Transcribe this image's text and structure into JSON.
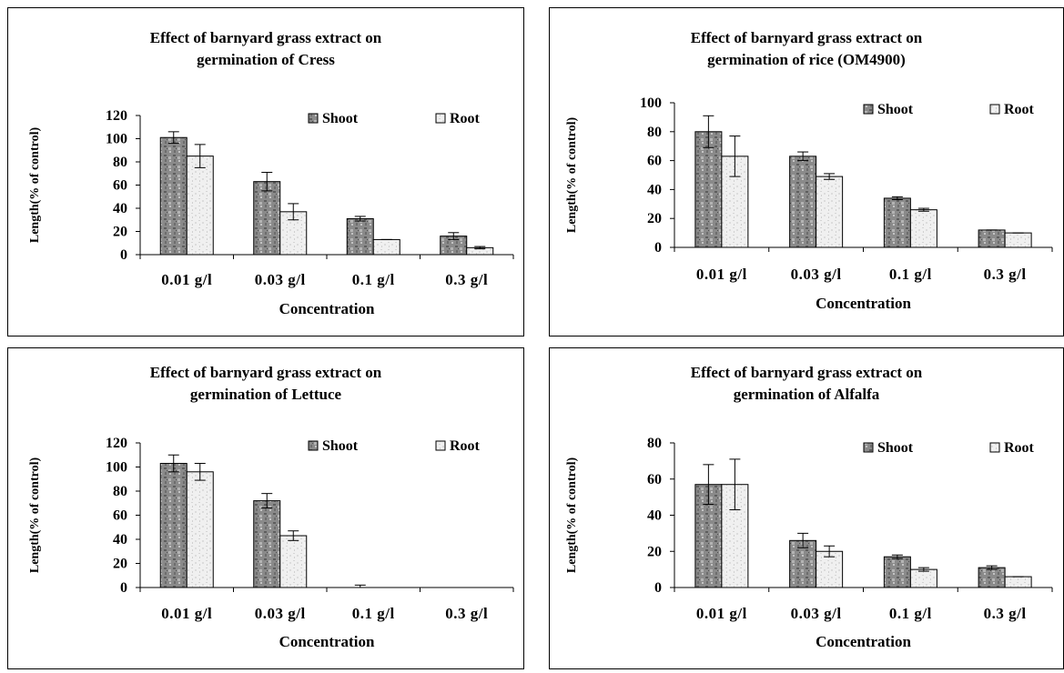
{
  "colors": {
    "shoot_fill": "#8a8a8a",
    "root_fill": "#ececec",
    "axis": "#000000"
  },
  "chart_data": [
    {
      "type": "bar",
      "title": [
        "Effect of barnyard grass extract on",
        "germination of Cress"
      ],
      "categories": [
        "0.01 g/l",
        "0.03 g/l",
        "0.1 g/l",
        "0.3 g/l"
      ],
      "series": [
        {
          "name": "Shoot",
          "values": [
            101,
            63,
            31,
            16
          ],
          "errors": [
            5,
            8,
            2,
            3
          ]
        },
        {
          "name": "Root",
          "values": [
            85,
            37,
            13,
            6
          ],
          "errors": [
            10,
            7,
            0,
            1
          ]
        }
      ],
      "xlabel": "Concentration",
      "ylabel": "Length(% of control)",
      "ylim": [
        0,
        120
      ],
      "yticks": [
        0,
        20,
        40,
        60,
        80,
        100,
        120
      ],
      "legend": "top-right",
      "grid": false
    },
    {
      "type": "bar",
      "title": [
        "Effect of barnyard grass extract on",
        "germination of rice (OM4900)"
      ],
      "categories": [
        "0.01 g/l",
        "0.03 g/l",
        "0.1 g/l",
        "0.3 g/l"
      ],
      "series": [
        {
          "name": "Shoot",
          "values": [
            80,
            63,
            34,
            12
          ],
          "errors": [
            11,
            3,
            1,
            0
          ]
        },
        {
          "name": "Root",
          "values": [
            63,
            49,
            26,
            10
          ],
          "errors": [
            14,
            2,
            1,
            0
          ]
        }
      ],
      "xlabel": "Concentration",
      "ylabel": "Length(% of control)",
      "ylim": [
        0,
        100
      ],
      "yticks": [
        0,
        20,
        40,
        60,
        80,
        100
      ],
      "legend": "top-right",
      "grid": false
    },
    {
      "type": "bar",
      "title": [
        "Effect of barnyard grass extract on",
        "germination of Lettuce"
      ],
      "categories": [
        "0.01 g/l",
        "0.03 g/l",
        "0.1 g/l",
        "0.3 g/l"
      ],
      "series": [
        {
          "name": "Shoot",
          "values": [
            103,
            72,
            0,
            0
          ],
          "errors": [
            7,
            6,
            2,
            0
          ]
        },
        {
          "name": "Root",
          "values": [
            96,
            43,
            0,
            0
          ],
          "errors": [
            7,
            4,
            0,
            0
          ]
        }
      ],
      "xlabel": "Concentration",
      "ylabel": "Length(% of control)",
      "ylim": [
        0,
        120
      ],
      "yticks": [
        0,
        20,
        40,
        60,
        80,
        100,
        120
      ],
      "legend": "top-right",
      "grid": false
    },
    {
      "type": "bar",
      "title": [
        "Effect of barnyard grass extract on",
        "germination of Alfalfa"
      ],
      "categories": [
        "0.01 g/l",
        "0.03 g/l",
        "0.1 g/l",
        "0.3 g/l"
      ],
      "series": [
        {
          "name": "Shoot",
          "values": [
            57,
            26,
            17,
            11
          ],
          "errors": [
            11,
            4,
            1,
            1
          ]
        },
        {
          "name": "Root",
          "values": [
            57,
            20,
            10,
            6
          ],
          "errors": [
            14,
            3,
            1,
            0
          ]
        }
      ],
      "xlabel": "Concentration",
      "ylabel": "Length(% of control)",
      "ylim": [
        0,
        80
      ],
      "yticks": [
        0,
        20,
        40,
        60,
        80
      ],
      "legend": "top-right",
      "grid": false
    }
  ]
}
